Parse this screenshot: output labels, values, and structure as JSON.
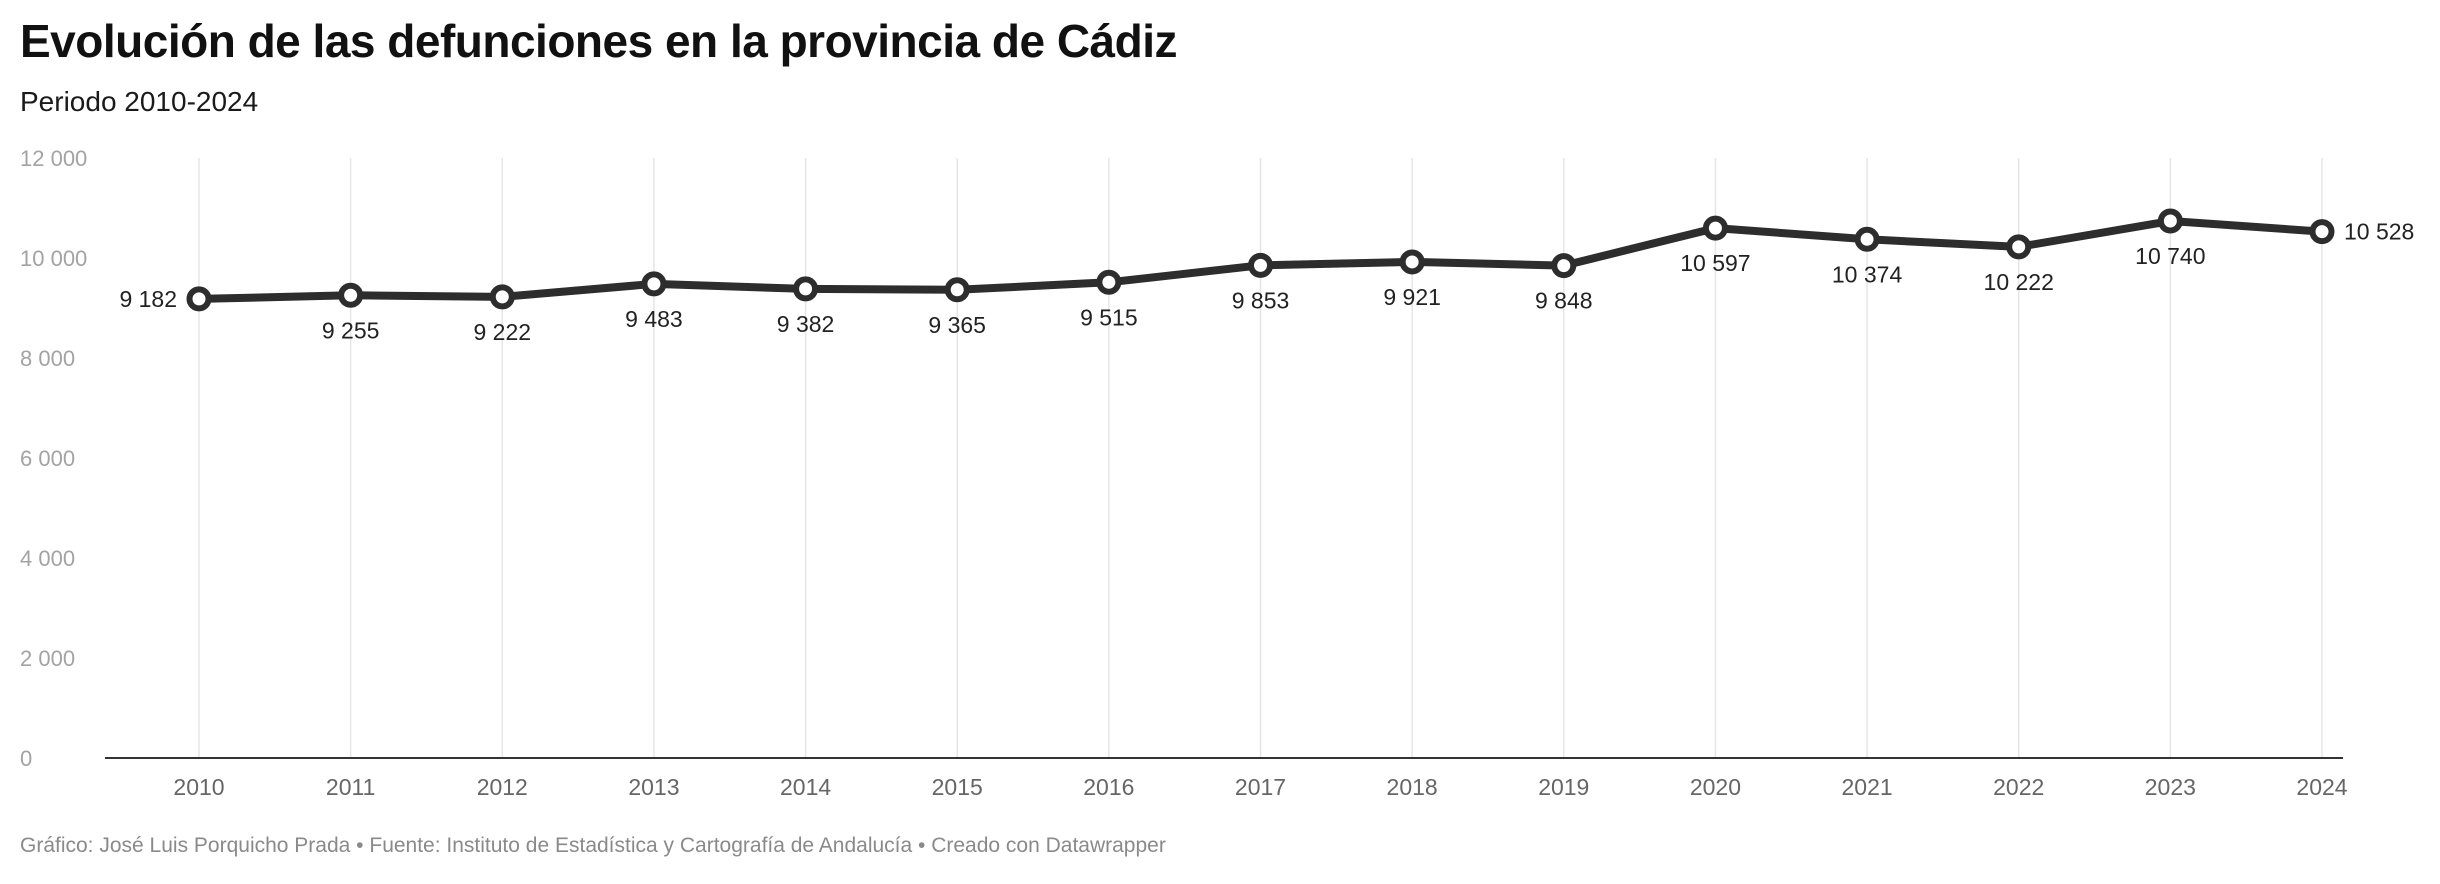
{
  "header": {
    "title": "Evolución de las defunciones en la provincia de Cádiz",
    "subtitle": "Periodo 2010-2024"
  },
  "footer": {
    "credit": "Gráfico: José Luis Porquicho Prada • Fuente: Instituto de Estadística y Cartografía de Andalucía • Creado con Datawrapper"
  },
  "colors": {
    "line": "#2d2d2d",
    "grid": "#e6e6e6",
    "axis": "#333333"
  },
  "chart_data": {
    "type": "line",
    "title": "Evolución de las defunciones en la provincia de Cádiz",
    "subtitle": "Periodo 2010-2024",
    "xlabel": "",
    "ylabel": "",
    "x": [
      "2010",
      "2011",
      "2012",
      "2013",
      "2014",
      "2015",
      "2016",
      "2017",
      "2018",
      "2019",
      "2020",
      "2021",
      "2022",
      "2023",
      "2024"
    ],
    "values": [
      9182,
      9255,
      9222,
      9483,
      9382,
      9365,
      9515,
      9853,
      9921,
      9848,
      10597,
      10374,
      10222,
      10740,
      10528
    ],
    "data_labels": [
      "9 182",
      "9 255",
      "9 222",
      "9 483",
      "9 382",
      "9 365",
      "9 515",
      "9 853",
      "9 921",
      "9 848",
      "10 597",
      "10 374",
      "10 222",
      "10 740",
      "10 528"
    ],
    "y_ticks": [
      0,
      2000,
      4000,
      6000,
      8000,
      10000,
      12000
    ],
    "y_tick_labels": [
      "0",
      "2 000",
      "4 000",
      "6 000",
      "8 000",
      "10 000",
      "12 000"
    ],
    "ylim": [
      0,
      12000
    ],
    "grid": "vertical",
    "legend": "none"
  }
}
